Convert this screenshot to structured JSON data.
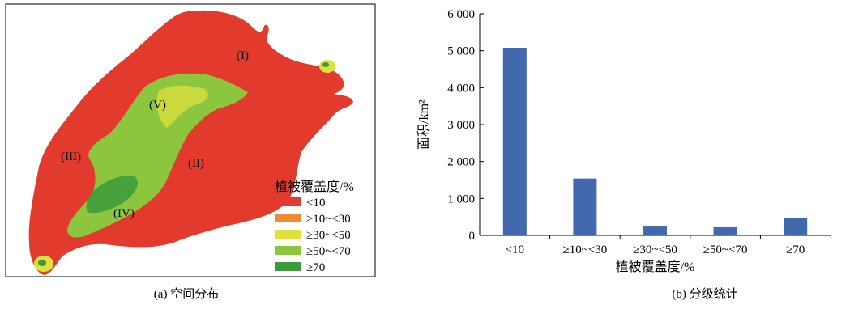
{
  "map": {
    "caption": "(a) 空间分布",
    "legend_title": "植被覆盖度/%",
    "legend": [
      {
        "label": "<10",
        "color": "#e23a2c"
      },
      {
        "label": "≥10~<30",
        "color": "#f08a30"
      },
      {
        "label": "≥30~<50",
        "color": "#dfe03c"
      },
      {
        "label": "≥50~<70",
        "color": "#8cc63e"
      },
      {
        "label": "≥70",
        "color": "#3a9a3a"
      }
    ],
    "region_labels": [
      "(I)",
      "(II)",
      "(III)",
      "(IV)",
      "(V)"
    ]
  },
  "chart_caption": "(b) 分级统计",
  "chart_data": {
    "type": "bar",
    "categories": [
      "<10",
      "≥10~<30",
      "≥30~<50",
      "≥50~<70",
      "≥70"
    ],
    "values": [
      5080,
      1540,
      240,
      220,
      480
    ],
    "xlabel": "植被覆盖度/%",
    "ylabel": "面积/km²",
    "ylim": [
      0,
      6000
    ],
    "yticks": [
      0,
      1000,
      2000,
      3000,
      4000,
      5000,
      6000
    ],
    "ytick_labels": [
      "0",
      "1 000",
      "2 000",
      "3 000",
      "4 000",
      "5 000",
      "6 000"
    ],
    "bar_color": "#4268ad",
    "grid": false,
    "legend": "none"
  }
}
